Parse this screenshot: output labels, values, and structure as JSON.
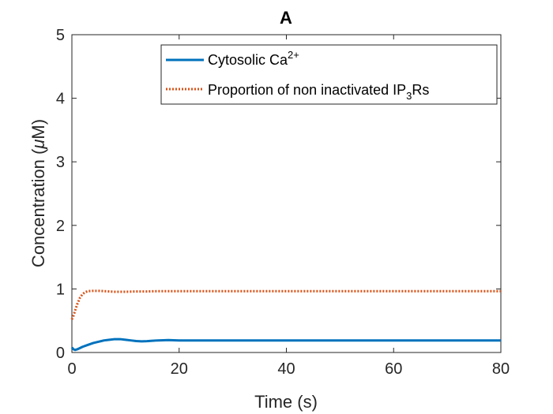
{
  "chart_data": {
    "type": "line",
    "title": "A",
    "xlabel": "Time (s)",
    "ylabel_prefix": "Concentration (",
    "ylabel_greek": "μ",
    "ylabel_suffix": "M)",
    "xlim": [
      0,
      80
    ],
    "ylim": [
      0,
      5
    ],
    "xticks": [
      0,
      20,
      40,
      60,
      80
    ],
    "yticks": [
      0,
      1,
      2,
      3,
      4,
      5
    ],
    "grid": false,
    "legend_position": "top-right",
    "series": [
      {
        "name_main": "Cytosolic Ca",
        "name_sup": "2+",
        "name_end": "",
        "color": "#0072bd",
        "style": "solid",
        "x": [
          0,
          0.3,
          0.6,
          1,
          1.5,
          2,
          3,
          4,
          5,
          6,
          7,
          8,
          9,
          10,
          11,
          12,
          13,
          14,
          15,
          16,
          18,
          20,
          25,
          30,
          35,
          40,
          45,
          50,
          55,
          60,
          65,
          70,
          75,
          80
        ],
        "y": [
          0.08,
          0.05,
          0.04,
          0.05,
          0.07,
          0.09,
          0.12,
          0.15,
          0.17,
          0.19,
          0.2,
          0.21,
          0.21,
          0.2,
          0.19,
          0.18,
          0.175,
          0.178,
          0.185,
          0.19,
          0.195,
          0.19,
          0.19,
          0.19,
          0.19,
          0.19,
          0.19,
          0.19,
          0.19,
          0.19,
          0.19,
          0.19,
          0.19,
          0.19
        ]
      },
      {
        "name_main": "Proportion of non inactivated IP",
        "name_sup": "3",
        "name_end": "Rs",
        "color": "#d95319",
        "style": "dotted",
        "x": [
          0,
          0.3,
          0.6,
          1,
          1.5,
          2,
          2.5,
          3,
          4,
          5,
          6,
          7,
          8,
          9,
          10,
          12,
          14,
          16,
          18,
          20,
          25,
          30,
          40,
          50,
          60,
          70,
          80
        ],
        "y": [
          0.52,
          0.58,
          0.66,
          0.76,
          0.86,
          0.92,
          0.95,
          0.965,
          0.97,
          0.97,
          0.965,
          0.96,
          0.955,
          0.955,
          0.955,
          0.96,
          0.96,
          0.965,
          0.965,
          0.965,
          0.965,
          0.965,
          0.965,
          0.965,
          0.965,
          0.965,
          0.965
        ]
      }
    ]
  }
}
